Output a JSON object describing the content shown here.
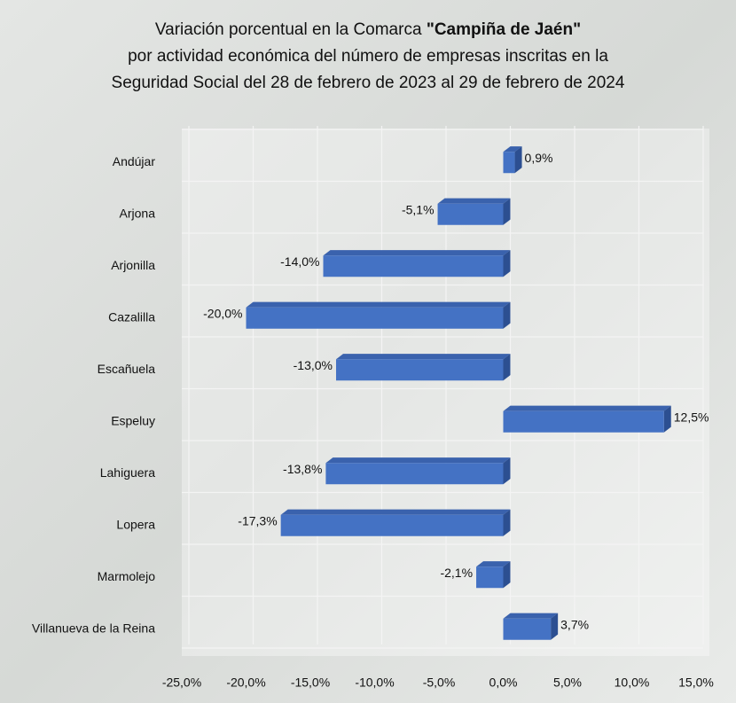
{
  "chart_data": {
    "type": "bar",
    "orientation": "horizontal",
    "title_prefix": "Variación porcentual en la Comarca",
    "title_bold": "\"Campiña de Jaén\"",
    "title_lines": [
      "por actividad económica del número de empresas inscritas en la",
      "Seguridad Social del 28 de febrero de 2023 al 29 de febrero de 2024"
    ],
    "categories": [
      "Andújar",
      "Arjona",
      "Arjonilla",
      "Cazalilla",
      "Escañuela",
      "Espeluy",
      "Lahiguera",
      "Lopera",
      "Marmolejo",
      "Villanueva de la Reina"
    ],
    "values": [
      0.9,
      -5.1,
      -14.0,
      -20.0,
      -13.0,
      12.5,
      -13.8,
      -17.3,
      -2.1,
      3.7
    ],
    "value_labels": [
      "0,9%",
      "-5,1%",
      "-14,0%",
      "-20,0%",
      "-13,0%",
      "12,5%",
      "-13,8%",
      "-17,3%",
      "-2,1%",
      "3,7%"
    ],
    "color": "#4472c4",
    "xlim": [
      -25,
      15
    ],
    "xticks": [
      {
        "value": -25,
        "label": "-25,0%"
      },
      {
        "value": -20,
        "label": "-20,0%"
      },
      {
        "value": -15,
        "label": "-15,0%"
      },
      {
        "value": -10,
        "label": "-10,0%"
      },
      {
        "value": -5,
        "label": "-5,0%"
      },
      {
        "value": 0,
        "label": "0,0%"
      },
      {
        "value": 5,
        "label": "5,0%"
      },
      {
        "value": 10,
        "label": "10,0%"
      },
      {
        "value": 15,
        "label": "15,0%"
      }
    ],
    "grid": true
  }
}
